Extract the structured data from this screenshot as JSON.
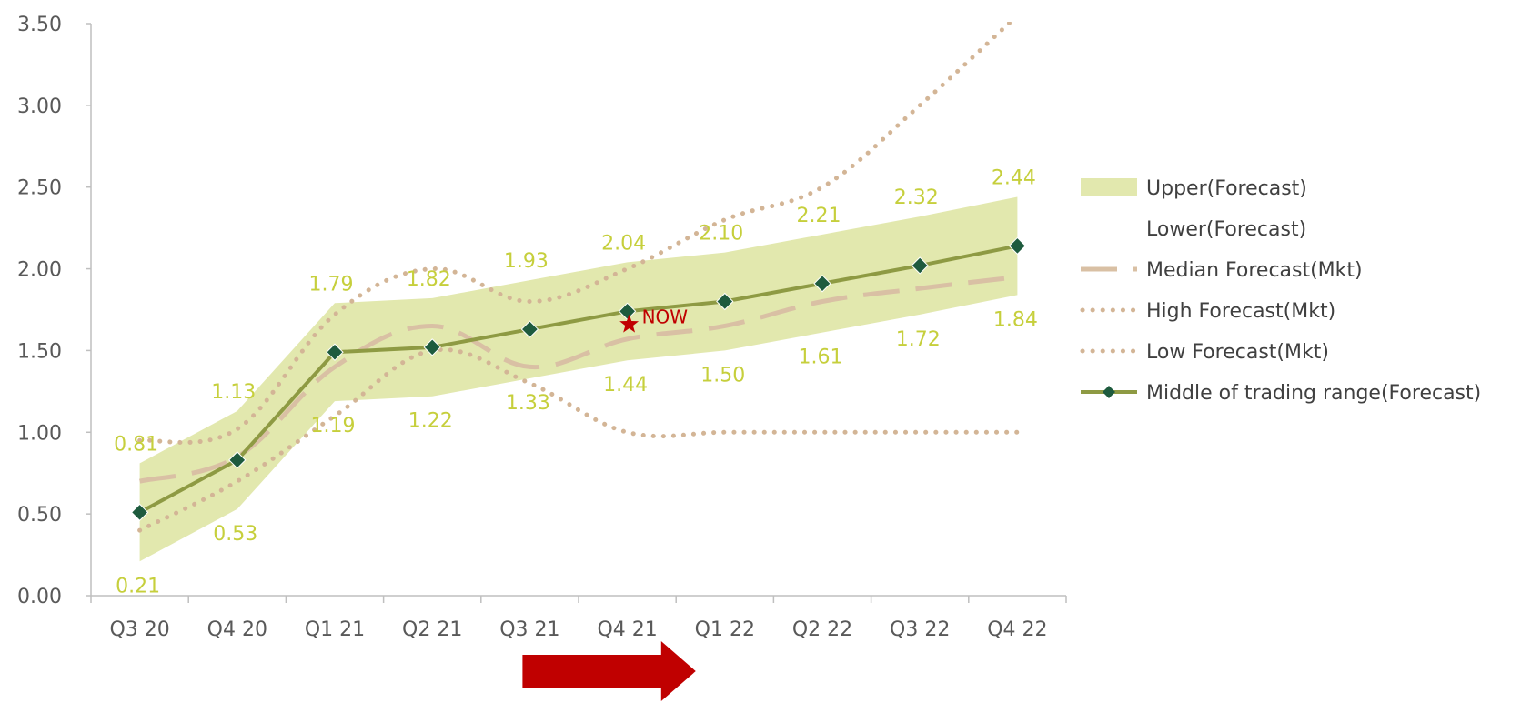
{
  "chart_data": {
    "type": "line",
    "categories": [
      "Q3 20",
      "Q4 20",
      "Q1 21",
      "Q2 21",
      "Q3 21",
      "Q4 21",
      "Q1 22",
      "Q2 22",
      "Q3 22",
      "Q4 22"
    ],
    "ylim": [
      0,
      3.5
    ],
    "yticks": [
      "0.00",
      "0.50",
      "1.00",
      "1.50",
      "2.00",
      "2.50",
      "3.00",
      "3.50"
    ],
    "ytick_values": [
      0,
      0.5,
      1.0,
      1.5,
      2.0,
      2.5,
      3.0,
      3.5
    ],
    "grid": false,
    "legend_position": "right",
    "series": [
      {
        "name": "Upper(Forecast)",
        "kind": "band-upper",
        "values": [
          0.81,
          1.13,
          1.79,
          1.82,
          1.93,
          2.04,
          2.1,
          2.21,
          2.32,
          2.44
        ],
        "labels": [
          "0.81",
          "1.13",
          "1.79",
          "1.82",
          "1.93",
          "2.04",
          "2.10",
          "2.21",
          "2.32",
          "2.44"
        ]
      },
      {
        "name": "Lower(Forecast)",
        "kind": "band-lower",
        "values": [
          0.21,
          0.53,
          1.19,
          1.22,
          1.33,
          1.44,
          1.5,
          1.61,
          1.72,
          1.84
        ],
        "labels": [
          "0.21",
          "0.53",
          "1.19",
          "1.22",
          "1.33",
          "1.44",
          "1.50",
          "1.61",
          "1.72",
          "1.84"
        ]
      },
      {
        "name": "Median Forecast(Mkt)",
        "kind": "dashed",
        "values": [
          0.7,
          0.85,
          1.4,
          1.65,
          1.4,
          1.57,
          1.65,
          1.8,
          1.88,
          1.95
        ]
      },
      {
        "name": "High Forecast(Mkt)",
        "kind": "dotted",
        "values": [
          0.95,
          1.02,
          1.72,
          2.0,
          1.8,
          2.0,
          2.3,
          2.5,
          3.0,
          3.55
        ]
      },
      {
        "name": "Low Forecast(Mkt)",
        "kind": "dotted",
        "values": [
          0.4,
          0.7,
          1.1,
          1.5,
          1.3,
          1.0,
          1.0,
          1.0,
          1.0,
          1.0
        ]
      },
      {
        "name": "Middle of trading range(Forecast)",
        "kind": "line-marker",
        "values": [
          0.51,
          0.83,
          1.49,
          1.52,
          1.63,
          1.74,
          1.8,
          1.91,
          2.02,
          2.14
        ]
      }
    ],
    "annotations": [
      {
        "text": "NOW",
        "x": "Q4 21",
        "y": 1.66,
        "marker": "star"
      }
    ],
    "arrow": {
      "from": "Q3 21",
      "to": "Q1 22",
      "color": "#c00000"
    }
  },
  "colors": {
    "band": "#e2e8ae",
    "data_label": "#c6cf3c",
    "median": "#d9c0a4",
    "dotted": "#d3b596",
    "middle_line": "#8e9a43",
    "marker": "#1e5b3e",
    "now": "#c00000",
    "arrow": "#c00000",
    "axis": "#bfbfbf",
    "tick_text": "#595959"
  }
}
